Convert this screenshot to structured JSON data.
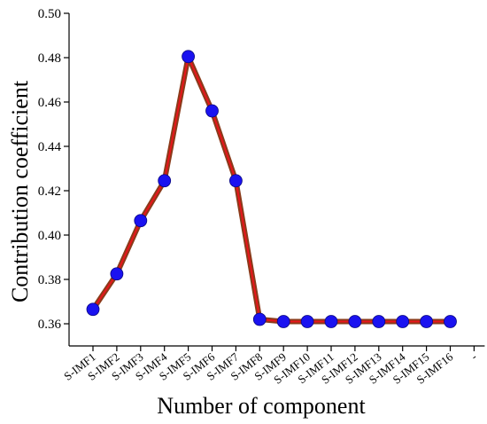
{
  "chart_data": {
    "type": "line",
    "title": "",
    "xlabel": "Number of component",
    "ylabel": "Contribution coefficient",
    "categories": [
      "S-IMF1",
      "S-IMF2",
      "S-IMF3",
      "S-IMF4",
      "S-IMF5",
      "S-IMF6",
      "S-IMF7",
      "S-IMF8",
      "S-IMF9",
      "S-IMF10",
      "S-IMF11",
      "S-IMF12",
      "S-IMF13",
      "S-IMF14",
      "S-IMF15",
      "S-IMF16"
    ],
    "extra_tick_label": "-",
    "values": [
      0.3665,
      0.3825,
      0.4065,
      0.4245,
      0.4805,
      0.456,
      0.4245,
      0.362,
      0.361,
      0.361,
      0.361,
      0.361,
      0.361,
      0.361,
      0.361,
      0.361
    ],
    "ylim": [
      0.35,
      0.5
    ],
    "yticks": [
      0.36,
      0.38,
      0.4,
      0.42,
      0.44,
      0.46,
      0.48,
      0.5
    ],
    "ytick_labels": [
      "0.36",
      "0.38",
      "0.40",
      "0.42",
      "0.44",
      "0.46",
      "0.48",
      "0.50"
    ],
    "colors": {
      "line_outer": "#8b3a1a",
      "line_inner": "#e8151b",
      "marker": "#1a12f0",
      "axis": "#000000"
    },
    "grid": false,
    "legend": "none"
  }
}
